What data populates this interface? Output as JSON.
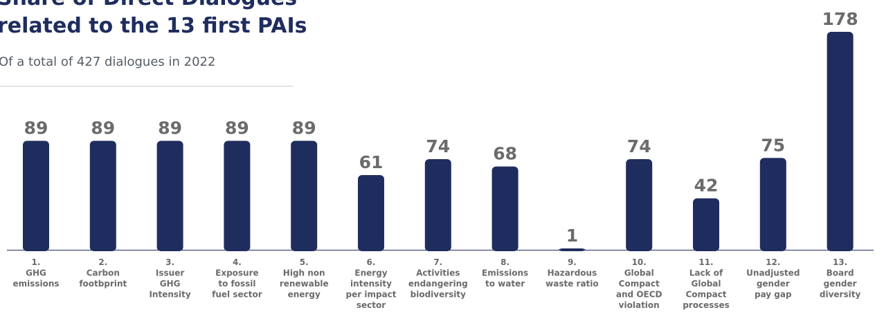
{
  "header": {
    "title_line1": "Share of Direct Dialogues",
    "title_line2": "related to the 13 first PAIs",
    "subtitle": "Of a total of 427 dialogues in 2022"
  },
  "colors": {
    "bar": "#1f2d5e",
    "value_label": "#6b6b6b",
    "category_label": "#6b6b6b",
    "title": "#1f2d5e",
    "baseline": "#1f2d5e"
  },
  "chart_data": {
    "type": "bar",
    "categories": [
      [
        "1.",
        "GHG",
        "emissions"
      ],
      [
        "2.",
        "Carbon",
        "footbprint"
      ],
      [
        "3.",
        "Issuer",
        "GHG",
        "Intensity"
      ],
      [
        "4.",
        "Exposure",
        "to fossil",
        "fuel sector"
      ],
      [
        "5.",
        "High non",
        "renewable",
        "energy"
      ],
      [
        "6.",
        "Energy",
        "intensity",
        "per impact",
        "sector"
      ],
      [
        "7.",
        "Activities",
        "endangering",
        "biodiversity"
      ],
      [
        "8.",
        "Emissions",
        "to water"
      ],
      [
        "9.",
        "Hazardous",
        "waste ratio"
      ],
      [
        "10.",
        "Global",
        "Compact",
        "and OECD",
        "violation"
      ],
      [
        "11.",
        "Lack of",
        "Global",
        "Compact",
        "processes"
      ],
      [
        "12.",
        "Unadjusted",
        "gender",
        "pay gap"
      ],
      [
        "13.",
        "Board",
        "gender",
        "diversity"
      ]
    ],
    "values": [
      89,
      89,
      89,
      89,
      89,
      61,
      74,
      68,
      1,
      74,
      42,
      75,
      178
    ],
    "value_labels": [
      "89",
      "89",
      "89",
      "89",
      "89",
      "61",
      "74",
      "68",
      "1",
      "74",
      "42",
      "75",
      "178"
    ],
    "ylim": [
      0,
      178
    ],
    "grid": false,
    "legend": "none"
  }
}
